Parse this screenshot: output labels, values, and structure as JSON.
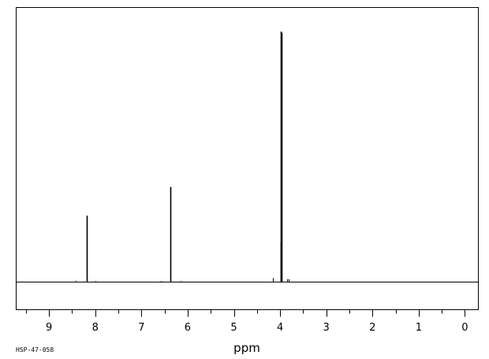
{
  "chart_data": {
    "type": "line",
    "xlabel": "ppm",
    "xlim": [
      9.72,
      -0.3
    ],
    "x_reversed": true,
    "baseline_y": 0,
    "ylim": [
      -0.105,
      1.0
    ],
    "ticks": {
      "major": [
        9,
        8,
        7,
        6,
        5,
        4,
        3,
        2,
        1,
        0
      ],
      "minor": [
        9.5,
        8.5,
        7.5,
        6.5,
        5.5,
        4.5,
        3.5,
        2.5,
        1.5,
        0.5,
        -0.5
      ]
    },
    "tick_labels": [
      "9",
      "8",
      "7",
      "6",
      "5",
      "4",
      "3",
      "2",
      "1",
      "0"
    ],
    "peaks": [
      {
        "x": 8.18,
        "height": 0.265
      },
      {
        "x": 6.38,
        "height": 0.38
      },
      {
        "x": 3.99,
        "height": 1.0
      },
      {
        "x": 3.965,
        "height": 0.995
      },
      {
        "x": 3.98,
        "height": 0.16
      },
      {
        "x": 4.16,
        "height": 0.016
      },
      {
        "x": 3.85,
        "height": 0.012
      },
      {
        "x": 3.81,
        "height": 0.012
      },
      {
        "x": 8.43,
        "height": 0.005
      },
      {
        "x": 7.99,
        "height": 0.004
      },
      {
        "x": 6.58,
        "height": 0.004
      },
      {
        "x": 6.16,
        "height": 0.004
      }
    ],
    "footer_code": "HSP-47-058"
  }
}
